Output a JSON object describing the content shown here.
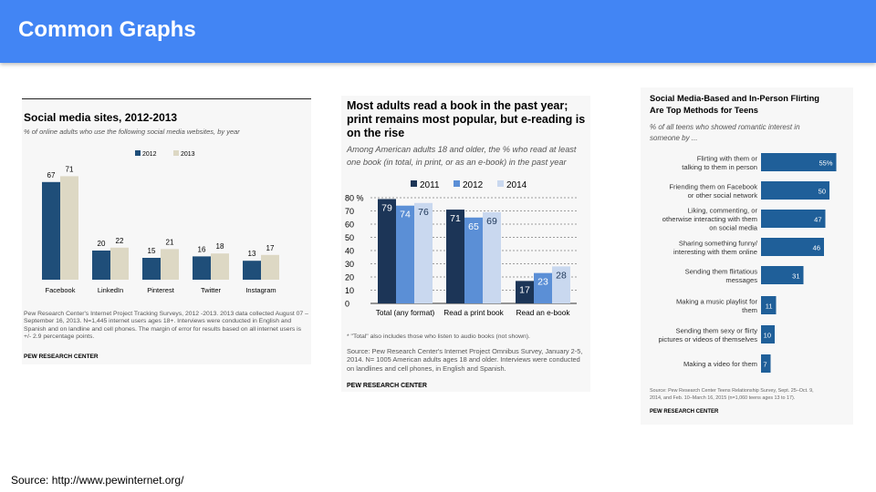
{
  "slide": {
    "title": "Common Graphs",
    "source": "Source: http://www.pewinternet.org/"
  },
  "colors": {
    "header": "#4285f4",
    "dark_blue": "#1f4e79",
    "beige": "#ddd8c4",
    "blue2012": "#5b8fd6",
    "light2014": "#c9d8ef",
    "navy2011": "#1c3557",
    "bar3": "#1f5f99"
  },
  "chart_data": [
    {
      "type": "bar",
      "title": "Social media sites, 2012-2013",
      "subtitle": "% of online adults who use the following social media websites, by year",
      "categories": [
        "Facebook",
        "LinkedIn",
        "Pinterest",
        "Twitter",
        "Instagram"
      ],
      "series": [
        {
          "name": "2012",
          "values": [
            67,
            20,
            15,
            16,
            13
          ],
          "color": "#1f4e79"
        },
        {
          "name": "2013",
          "values": [
            71,
            22,
            21,
            18,
            17
          ],
          "color": "#ddd8c4"
        }
      ],
      "ylim": [
        0,
        80
      ],
      "legend": "top-center",
      "note": "Pew Research Center's Internet Project Tracking Surveys, 2012 -2013. 2013 data collected August 07 –September 16, 2013. N=1,445 internet users ages 18+. Interviews were conducted in English and Spanish and on landline and cell phones. The margin of error for results based on all internet users is +/- 2.9 percentage points.",
      "credit": "PEW RESEARCH CENTER"
    },
    {
      "type": "bar",
      "title": "Most adults read a book in the past year; print remains most popular, but e-reading is on the rise",
      "subtitle": "Among American adults 18 and older, the % who read at least one book (in total, in print, or as an e-book) in the past year",
      "categories": [
        "Total (any format)",
        "Read a print book",
        "Read an e-book"
      ],
      "series": [
        {
          "name": "2011",
          "values": [
            79,
            71,
            17
          ],
          "color": "#1c3557"
        },
        {
          "name": "2012",
          "values": [
            74,
            65,
            23
          ],
          "color": "#5b8fd6"
        },
        {
          "name": "2014",
          "values": [
            76,
            69,
            28
          ],
          "color": "#c9d8ef"
        }
      ],
      "yticks": [
        "0",
        "10",
        "20",
        "30",
        "40",
        "50",
        "60",
        "70",
        "80 %"
      ],
      "ylim": [
        0,
        80
      ],
      "grid": true,
      "legend": "top-center",
      "footnote": "* \"Total\" also includes those who listen to audio books (not shown).",
      "note": "Source: Pew Research Center's Internet Project Omnibus Survey, January 2-5, 2014. N= 1005 American adults ages 18 and older. Interviews were conducted on landlines and cell phones, in English and Spanish.",
      "credit": "PEW RESEARCH CENTER"
    },
    {
      "type": "bar",
      "orientation": "horizontal",
      "title": "Social Media-Based and In-Person Flirting Are Top Methods for Teens",
      "subtitle": "% of all teens who showed romantic interest in someone by ...",
      "categories": [
        [
          "Flirting with them or",
          "talking to them in person"
        ],
        [
          "Friending them on Facebook",
          "or other social network"
        ],
        [
          "Liking, commenting, or",
          "otherwise interacting with them",
          "on social media"
        ],
        [
          "Sharing something funny/",
          "interesting with them online"
        ],
        [
          "Sending them flirtatious",
          "messages"
        ],
        [
          "Making a music playlist for",
          "them"
        ],
        [
          "Sending them sexy or flirty",
          "pictures or videos of themselves"
        ],
        [
          "Making a video for them"
        ]
      ],
      "values": [
        55,
        50,
        47,
        46,
        31,
        11,
        10,
        7
      ],
      "value_labels": [
        "55%",
        "50",
        "47",
        "46",
        "31",
        "11",
        "10",
        "7"
      ],
      "color": "#1f5f99",
      "note": "Source: Pew Research Center Teens Relationship Survey, Sept. 25–Oct. 9, 2014, and Feb. 10–March 16, 2015 (n=1,060 teens ages 13 to 17).",
      "credit": "PEW RESEARCH CENTER"
    }
  ]
}
